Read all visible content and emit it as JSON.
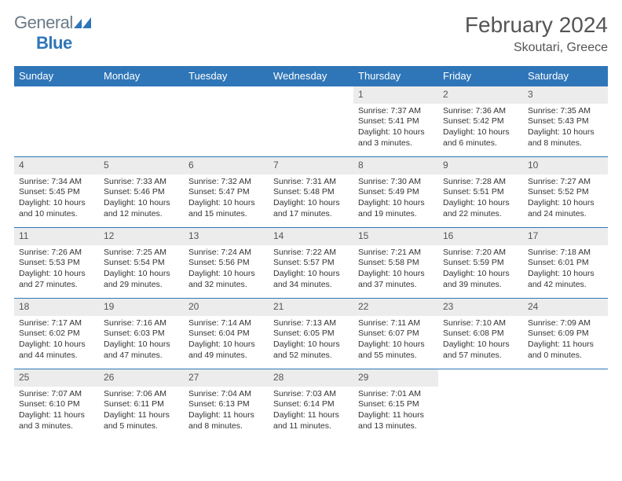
{
  "brand": {
    "general": "General",
    "blue": "Blue"
  },
  "title": {
    "month": "February 2024",
    "location": "Skoutari, Greece"
  },
  "colors": {
    "header_bg": "#2f76b8",
    "daynum_bg": "#ececec",
    "border": "#2f76b8",
    "text": "#333333",
    "muted": "#555555"
  },
  "weekdays": [
    "Sunday",
    "Monday",
    "Tuesday",
    "Wednesday",
    "Thursday",
    "Friday",
    "Saturday"
  ],
  "weeks": [
    [
      null,
      null,
      null,
      null,
      {
        "d": "1",
        "sr": "Sunrise: 7:37 AM",
        "ss": "Sunset: 5:41 PM",
        "dl": "Daylight: 10 hours and 3 minutes."
      },
      {
        "d": "2",
        "sr": "Sunrise: 7:36 AM",
        "ss": "Sunset: 5:42 PM",
        "dl": "Daylight: 10 hours and 6 minutes."
      },
      {
        "d": "3",
        "sr": "Sunrise: 7:35 AM",
        "ss": "Sunset: 5:43 PM",
        "dl": "Daylight: 10 hours and 8 minutes."
      }
    ],
    [
      {
        "d": "4",
        "sr": "Sunrise: 7:34 AM",
        "ss": "Sunset: 5:45 PM",
        "dl": "Daylight: 10 hours and 10 minutes."
      },
      {
        "d": "5",
        "sr": "Sunrise: 7:33 AM",
        "ss": "Sunset: 5:46 PM",
        "dl": "Daylight: 10 hours and 12 minutes."
      },
      {
        "d": "6",
        "sr": "Sunrise: 7:32 AM",
        "ss": "Sunset: 5:47 PM",
        "dl": "Daylight: 10 hours and 15 minutes."
      },
      {
        "d": "7",
        "sr": "Sunrise: 7:31 AM",
        "ss": "Sunset: 5:48 PM",
        "dl": "Daylight: 10 hours and 17 minutes."
      },
      {
        "d": "8",
        "sr": "Sunrise: 7:30 AM",
        "ss": "Sunset: 5:49 PM",
        "dl": "Daylight: 10 hours and 19 minutes."
      },
      {
        "d": "9",
        "sr": "Sunrise: 7:28 AM",
        "ss": "Sunset: 5:51 PM",
        "dl": "Daylight: 10 hours and 22 minutes."
      },
      {
        "d": "10",
        "sr": "Sunrise: 7:27 AM",
        "ss": "Sunset: 5:52 PM",
        "dl": "Daylight: 10 hours and 24 minutes."
      }
    ],
    [
      {
        "d": "11",
        "sr": "Sunrise: 7:26 AM",
        "ss": "Sunset: 5:53 PM",
        "dl": "Daylight: 10 hours and 27 minutes."
      },
      {
        "d": "12",
        "sr": "Sunrise: 7:25 AM",
        "ss": "Sunset: 5:54 PM",
        "dl": "Daylight: 10 hours and 29 minutes."
      },
      {
        "d": "13",
        "sr": "Sunrise: 7:24 AM",
        "ss": "Sunset: 5:56 PM",
        "dl": "Daylight: 10 hours and 32 minutes."
      },
      {
        "d": "14",
        "sr": "Sunrise: 7:22 AM",
        "ss": "Sunset: 5:57 PM",
        "dl": "Daylight: 10 hours and 34 minutes."
      },
      {
        "d": "15",
        "sr": "Sunrise: 7:21 AM",
        "ss": "Sunset: 5:58 PM",
        "dl": "Daylight: 10 hours and 37 minutes."
      },
      {
        "d": "16",
        "sr": "Sunrise: 7:20 AM",
        "ss": "Sunset: 5:59 PM",
        "dl": "Daylight: 10 hours and 39 minutes."
      },
      {
        "d": "17",
        "sr": "Sunrise: 7:18 AM",
        "ss": "Sunset: 6:01 PM",
        "dl": "Daylight: 10 hours and 42 minutes."
      }
    ],
    [
      {
        "d": "18",
        "sr": "Sunrise: 7:17 AM",
        "ss": "Sunset: 6:02 PM",
        "dl": "Daylight: 10 hours and 44 minutes."
      },
      {
        "d": "19",
        "sr": "Sunrise: 7:16 AM",
        "ss": "Sunset: 6:03 PM",
        "dl": "Daylight: 10 hours and 47 minutes."
      },
      {
        "d": "20",
        "sr": "Sunrise: 7:14 AM",
        "ss": "Sunset: 6:04 PM",
        "dl": "Daylight: 10 hours and 49 minutes."
      },
      {
        "d": "21",
        "sr": "Sunrise: 7:13 AM",
        "ss": "Sunset: 6:05 PM",
        "dl": "Daylight: 10 hours and 52 minutes."
      },
      {
        "d": "22",
        "sr": "Sunrise: 7:11 AM",
        "ss": "Sunset: 6:07 PM",
        "dl": "Daylight: 10 hours and 55 minutes."
      },
      {
        "d": "23",
        "sr": "Sunrise: 7:10 AM",
        "ss": "Sunset: 6:08 PM",
        "dl": "Daylight: 10 hours and 57 minutes."
      },
      {
        "d": "24",
        "sr": "Sunrise: 7:09 AM",
        "ss": "Sunset: 6:09 PM",
        "dl": "Daylight: 11 hours and 0 minutes."
      }
    ],
    [
      {
        "d": "25",
        "sr": "Sunrise: 7:07 AM",
        "ss": "Sunset: 6:10 PM",
        "dl": "Daylight: 11 hours and 3 minutes."
      },
      {
        "d": "26",
        "sr": "Sunrise: 7:06 AM",
        "ss": "Sunset: 6:11 PM",
        "dl": "Daylight: 11 hours and 5 minutes."
      },
      {
        "d": "27",
        "sr": "Sunrise: 7:04 AM",
        "ss": "Sunset: 6:13 PM",
        "dl": "Daylight: 11 hours and 8 minutes."
      },
      {
        "d": "28",
        "sr": "Sunrise: 7:03 AM",
        "ss": "Sunset: 6:14 PM",
        "dl": "Daylight: 11 hours and 11 minutes."
      },
      {
        "d": "29",
        "sr": "Sunrise: 7:01 AM",
        "ss": "Sunset: 6:15 PM",
        "dl": "Daylight: 11 hours and 13 minutes."
      },
      null,
      null
    ]
  ]
}
